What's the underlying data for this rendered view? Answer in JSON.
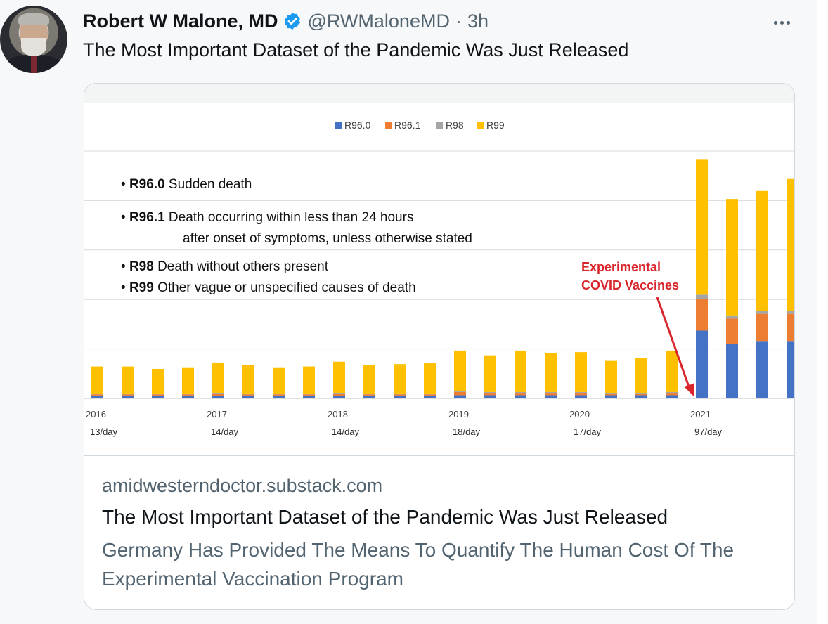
{
  "tweet": {
    "author": {
      "display_name": "Robert W Malone, MD",
      "verified": true,
      "handle": "@RWMaloneMD",
      "separator": "·",
      "time": "3h"
    },
    "text": "The Most Important Dataset of the Pandemic Was Just Released",
    "more_icon": "more-horizontal-icon",
    "verified_icon": "verified-badge-icon",
    "colors": {
      "verified": "#1d9bf0",
      "name": "#0f1419",
      "secondary": "#536471",
      "card_border": "#cfd9de"
    }
  },
  "card": {
    "domain": "amidwesterndoctor.substack.com",
    "title": "The Most Important Dataset of the Pandemic Was Just Released",
    "description": "Germany Has Provided The Means To Quantify The Human Cost Of The Experimental Vaccination Program"
  },
  "chart_data": {
    "type": "bar",
    "stacked": true,
    "legend_position": "top-center",
    "grid": true,
    "series": [
      {
        "name": "R96.0",
        "color": "#4472c4"
      },
      {
        "name": "R96.1",
        "color": "#ed7d31"
      },
      {
        "name": "R98",
        "color": "#a5a5a5"
      },
      {
        "name": "R99",
        "color": "#ffc000"
      }
    ],
    "bars": [
      {
        "values": [
          3,
          2,
          1,
          34
        ]
      },
      {
        "values": [
          3,
          2,
          1,
          34
        ]
      },
      {
        "values": [
          3,
          2,
          1,
          31
        ]
      },
      {
        "values": [
          3,
          2,
          1,
          33
        ]
      },
      {
        "values": [
          3,
          3,
          1,
          38
        ]
      },
      {
        "values": [
          3,
          2,
          1,
          36
        ]
      },
      {
        "values": [
          3,
          2,
          1,
          33
        ]
      },
      {
        "values": [
          3,
          2,
          1,
          34
        ]
      },
      {
        "values": [
          3,
          3,
          1,
          39
        ]
      },
      {
        "values": [
          3,
          2,
          1,
          36
        ]
      },
      {
        "values": [
          3,
          2,
          1,
          37
        ]
      },
      {
        "values": [
          3,
          2,
          1,
          38
        ]
      },
      {
        "values": [
          4,
          4,
          1,
          51
        ]
      },
      {
        "values": [
          4,
          3,
          1,
          46
        ]
      },
      {
        "values": [
          4,
          3,
          1,
          52
        ]
      },
      {
        "values": [
          4,
          3,
          1,
          49
        ]
      },
      {
        "values": [
          4,
          3,
          1,
          50
        ]
      },
      {
        "values": [
          4,
          2,
          1,
          40
        ]
      },
      {
        "values": [
          4,
          2,
          1,
          44
        ]
      },
      {
        "values": [
          4,
          3,
          1,
          52
        ]
      },
      {
        "values": [
          85,
          40,
          5,
          170
        ]
      },
      {
        "values": [
          68,
          32,
          4,
          146
        ]
      },
      {
        "values": [
          72,
          34,
          4,
          150
        ]
      },
      {
        "values": [
          72,
          34,
          4,
          165
        ]
      }
    ],
    "ylim": [
      0,
      310
    ],
    "x_labels": [
      {
        "year": "2016",
        "rate": "13/day",
        "index": 0
      },
      {
        "year": "2017",
        "rate": "14/day",
        "index": 4
      },
      {
        "year": "2018",
        "rate": "14/day",
        "index": 8
      },
      {
        "year": "2019",
        "rate": "18/day",
        "index": 12
      },
      {
        "year": "2020",
        "rate": "17/day",
        "index": 16
      },
      {
        "year": "2021",
        "rate": "97/day",
        "index": 20
      }
    ],
    "legend_box": [
      {
        "code": "R96.0",
        "desc": "Sudden death"
      },
      {
        "code": "R96.1",
        "desc": "Death occurring within less than 24 hours",
        "desc2": "after onset of symptoms, unless otherwise stated"
      },
      {
        "code": "R98",
        "desc": "Death without others present"
      },
      {
        "code": "R99",
        "desc": "Other vague or unspecified causes of death"
      }
    ],
    "annotation": {
      "lines": [
        "Experimental",
        "COVID Vaccines"
      ],
      "color": "#d9252b"
    }
  }
}
